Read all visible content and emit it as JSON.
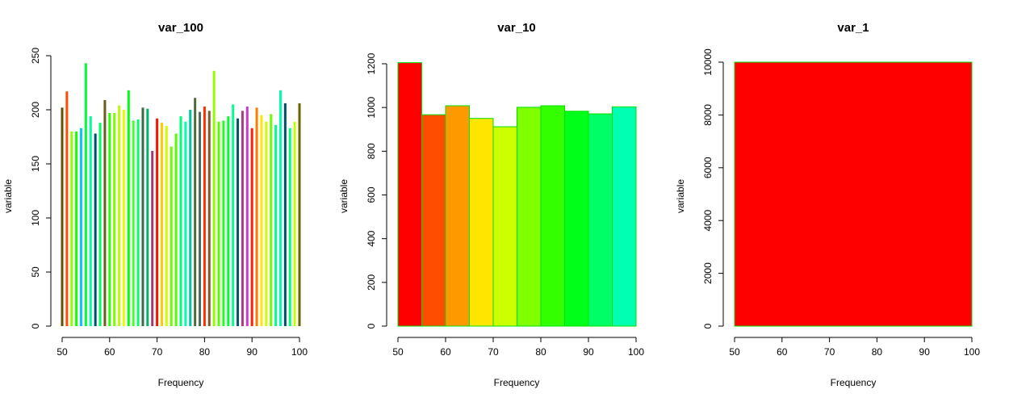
{
  "chart_data": [
    {
      "type": "bar",
      "title": "var_100",
      "xlabel": "Frequency",
      "ylabel": "variable",
      "xlim": [
        50,
        100
      ],
      "ylim": [
        0,
        250
      ],
      "xticks": [
        "50",
        "60",
        "70",
        "80",
        "90",
        "100"
      ],
      "yticks": [
        "0",
        "50",
        "100",
        "150",
        "200",
        "250"
      ],
      "grid": false,
      "x": [
        50,
        51,
        52,
        53,
        54,
        55,
        56,
        57,
        58,
        59,
        60,
        61,
        62,
        63,
        64,
        65,
        66,
        67,
        68,
        69,
        70,
        71,
        72,
        73,
        74,
        75,
        76,
        77,
        78,
        79,
        80,
        81,
        82,
        83,
        84,
        85,
        86,
        87,
        88,
        89,
        90,
        91,
        92,
        93,
        94,
        95,
        96,
        97,
        98,
        99,
        100
      ],
      "values": [
        202,
        217,
        180,
        180,
        183,
        243,
        194,
        178,
        188,
        209,
        197,
        197,
        204,
        200,
        218,
        190,
        191,
        202,
        201,
        162,
        192,
        188,
        185,
        166,
        178,
        194,
        189,
        200,
        211,
        198,
        203,
        199,
        236,
        189,
        190,
        194,
        205,
        192,
        199,
        203,
        183,
        202,
        195,
        189,
        196,
        186,
        218,
        206,
        183,
        189,
        206
      ],
      "colors": [
        "#6b4e00",
        "#ff4a00",
        "#8cff00",
        "#14ff00",
        "#00c9ff",
        "#00ff3a",
        "#00ff99",
        "#004d73",
        "#00ff60",
        "#6b5c1e",
        "#2eff00",
        "#7dff00",
        "#b9ff00",
        "#e6ff00",
        "#00ff12",
        "#45ff2e",
        "#00ff66",
        "#3b6b45",
        "#00b36b",
        "#a23b6b",
        "#ff1100",
        "#ffcc00",
        "#d4ff00",
        "#6cff00",
        "#52ff00",
        "#00ff76",
        "#00ffaa",
        "#00c2a0",
        "#4d6b3b",
        "#4b6b5c",
        "#ff3000",
        "#7a5c2e",
        "#8fff00",
        "#54ff00",
        "#21ff21",
        "#00ff30",
        "#00ff90",
        "#00546b",
        "#aa3b8c",
        "#cc3bcc",
        "#ff2200",
        "#ff7a00",
        "#ffe600",
        "#cdff00",
        "#6eff00",
        "#00ff8a",
        "#00ffa8",
        "#00506b",
        "#00ff77",
        "#c2ff00",
        "#6b6300"
      ]
    },
    {
      "type": "bar",
      "title": "var_10",
      "xlabel": "Frequency",
      "ylabel": "variable",
      "xlim": [
        50,
        100
      ],
      "ylim": [
        0,
        1200
      ],
      "xticks": [
        "50",
        "60",
        "70",
        "80",
        "90",
        "100"
      ],
      "yticks": [
        "0",
        "200",
        "400",
        "600",
        "800",
        "1000",
        "1200"
      ],
      "grid": false,
      "bins": [
        [
          50,
          55
        ],
        [
          55,
          60
        ],
        [
          60,
          65
        ],
        [
          65,
          70
        ],
        [
          70,
          75
        ],
        [
          75,
          80
        ],
        [
          80,
          85
        ],
        [
          85,
          90
        ],
        [
          90,
          95
        ],
        [
          95,
          100
        ]
      ],
      "values": [
        1205,
        967,
        1008,
        950,
        912,
        1001,
        1008,
        983,
        971,
        1003
      ],
      "colors": [
        "#ff0000",
        "#ff4d00",
        "#ff9900",
        "#ffe500",
        "#ccff00",
        "#80ff00",
        "#33ff00",
        "#00ff19",
        "#00ff66",
        "#00ffb2"
      ],
      "border_color": "#00e000"
    },
    {
      "type": "bar",
      "title": "var_1",
      "xlabel": "Frequency",
      "ylabel": "variable",
      "xlim": [
        50,
        100
      ],
      "ylim": [
        0,
        10000
      ],
      "xticks": [
        "50",
        "60",
        "70",
        "80",
        "90",
        "100"
      ],
      "yticks": [
        "0",
        "2000",
        "4000",
        "6000",
        "8000",
        "10000"
      ],
      "grid": false,
      "bins": [
        [
          50,
          100
        ]
      ],
      "values": [
        10000
      ],
      "colors": [
        "#ff0000"
      ],
      "border_color": "#00e000"
    }
  ]
}
